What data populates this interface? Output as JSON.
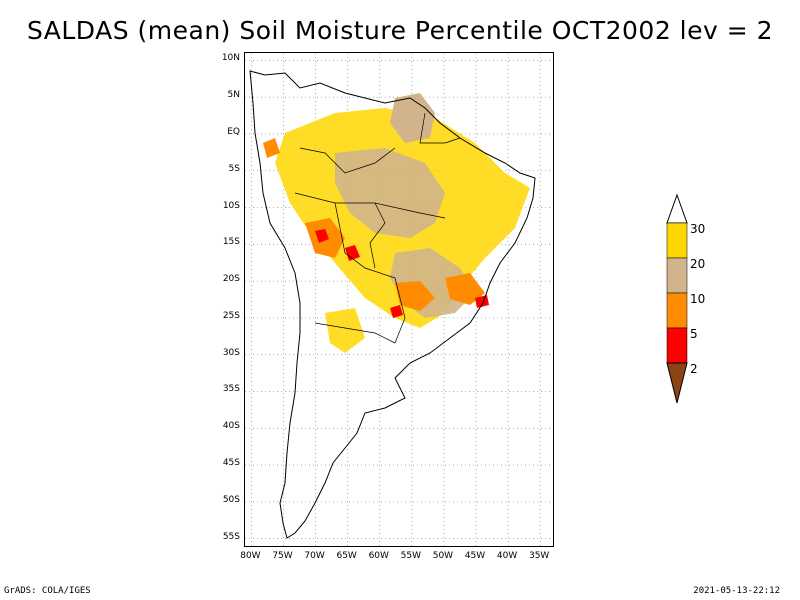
{
  "title": "SALDAS (mean) Soil Moisture Percentile OCT2002 lev = 2",
  "footer": {
    "left": "GrADS: COLA/IGES",
    "right": "2021-05-13-22:12"
  },
  "map": {
    "region": "South America",
    "lat_labels": [
      "10N",
      "5N",
      "EQ",
      "5S",
      "10S",
      "15S",
      "20S",
      "25S",
      "30S",
      "35S",
      "40S",
      "45S",
      "50S",
      "55S"
    ],
    "lon_labels": [
      "80W",
      "75W",
      "70W",
      "65W",
      "60W",
      "55W",
      "50W",
      "45W",
      "40W",
      "35W"
    ],
    "lat_range": [
      -56,
      11
    ],
    "lon_range": [
      -81,
      -33
    ]
  },
  "colorbar": {
    "labels": [
      "30",
      "20",
      "10",
      "5",
      "2"
    ],
    "colors": {
      "above_30": "#ffffff",
      "20_30": "#ffd700",
      "10_20": "#d2b48c",
      "5_10": "#ff8c00",
      "2_5": "#ff0000",
      "below_2": "#8b4513"
    }
  }
}
